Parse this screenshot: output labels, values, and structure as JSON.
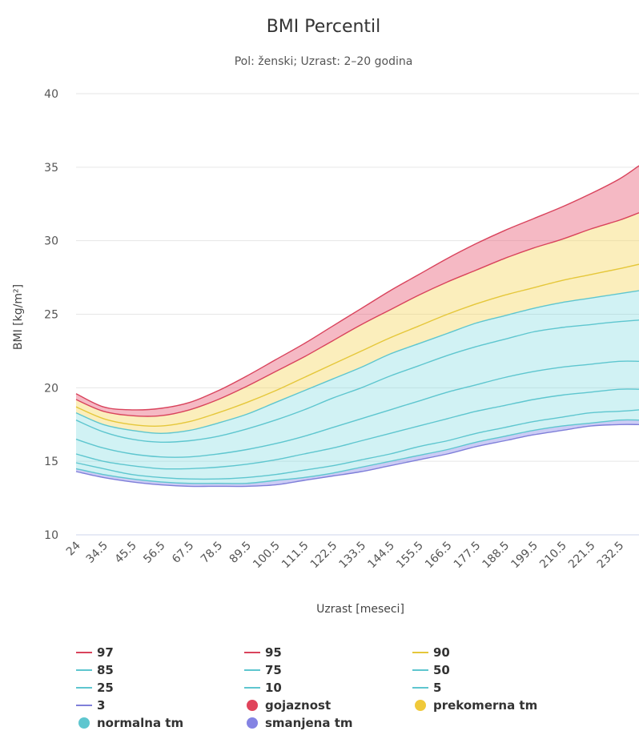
{
  "chart_data": {
    "type": "area",
    "title": "BMI Percentil",
    "subtitle": "Pol: ženski; Uzrast: 2–20 godina",
    "xlabel": "Uzrast [meseci]",
    "ylabel": "BMI [kg/m²]",
    "ylim": [
      10,
      40
    ],
    "yticks": [
      10,
      15,
      20,
      25,
      30,
      35,
      40
    ],
    "xlim": [
      24,
      240
    ],
    "xticks": [
      "24",
      "34.5",
      "45.5",
      "56.5",
      "67.5",
      "78.5",
      "89.5",
      "100.5",
      "111.5",
      "122.5",
      "133.5",
      "144.5",
      "155.5",
      "166.5",
      "177.5",
      "188.5",
      "199.5",
      "210.5",
      "221.5",
      "232.5"
    ],
    "grid": "horizontal",
    "legend_position": "bottom",
    "x": [
      24,
      34.5,
      45.5,
      56.5,
      67.5,
      78.5,
      89.5,
      100.5,
      111.5,
      122.5,
      133.5,
      144.5,
      155.5,
      166.5,
      177.5,
      188.5,
      199.5,
      210.5,
      221.5,
      232.5,
      240
    ],
    "series": [
      {
        "name": "97",
        "color": "#d9435c",
        "values": [
          19.6,
          18.7,
          18.5,
          18.6,
          19.0,
          19.8,
          20.8,
          21.9,
          23.0,
          24.2,
          25.4,
          26.6,
          27.7,
          28.8,
          29.8,
          30.7,
          31.5,
          32.3,
          33.2,
          34.2,
          35.1
        ]
      },
      {
        "name": "95",
        "color": "#d9435c",
        "values": [
          19.2,
          18.4,
          18.1,
          18.1,
          18.5,
          19.2,
          20.1,
          21.1,
          22.1,
          23.2,
          24.3,
          25.3,
          26.3,
          27.2,
          28.0,
          28.8,
          29.5,
          30.1,
          30.8,
          31.4,
          31.9
        ]
      },
      {
        "name": "90",
        "color": "#e5c73a",
        "values": [
          18.7,
          17.9,
          17.5,
          17.4,
          17.7,
          18.3,
          19.0,
          19.8,
          20.7,
          21.6,
          22.5,
          23.4,
          24.2,
          25.0,
          25.7,
          26.3,
          26.8,
          27.3,
          27.7,
          28.1,
          28.4
        ]
      },
      {
        "name": "85",
        "color": "#5ec6cf",
        "values": [
          18.3,
          17.5,
          17.1,
          16.9,
          17.1,
          17.6,
          18.2,
          19.0,
          19.8,
          20.6,
          21.4,
          22.3,
          23.0,
          23.7,
          24.4,
          24.9,
          25.4,
          25.8,
          26.1,
          26.4,
          26.6
        ]
      },
      {
        "name": "75",
        "color": "#5ec6cf",
        "values": [
          17.8,
          17.0,
          16.5,
          16.3,
          16.4,
          16.7,
          17.2,
          17.8,
          18.5,
          19.3,
          20.0,
          20.8,
          21.5,
          22.2,
          22.8,
          23.3,
          23.8,
          24.1,
          24.3,
          24.5,
          24.6
        ]
      },
      {
        "name": "50",
        "color": "#5ec6cf",
        "values": [
          16.5,
          15.9,
          15.5,
          15.3,
          15.3,
          15.5,
          15.8,
          16.2,
          16.7,
          17.3,
          17.9,
          18.5,
          19.1,
          19.7,
          20.2,
          20.7,
          21.1,
          21.4,
          21.6,
          21.8,
          21.8
        ]
      },
      {
        "name": "25",
        "color": "#5ec6cf",
        "values": [
          15.5,
          15.0,
          14.7,
          14.5,
          14.5,
          14.6,
          14.8,
          15.1,
          15.5,
          15.9,
          16.4,
          16.9,
          17.4,
          17.9,
          18.4,
          18.8,
          19.2,
          19.5,
          19.7,
          19.9,
          19.9
        ]
      },
      {
        "name": "10",
        "color": "#5ec6cf",
        "values": [
          14.9,
          14.5,
          14.1,
          13.9,
          13.8,
          13.8,
          13.9,
          14.1,
          14.4,
          14.7,
          15.1,
          15.5,
          16.0,
          16.4,
          16.9,
          17.3,
          17.7,
          18.0,
          18.3,
          18.4,
          18.5
        ]
      },
      {
        "name": "5",
        "color": "#5ec6cf",
        "values": [
          14.5,
          14.1,
          13.8,
          13.6,
          13.5,
          13.5,
          13.5,
          13.7,
          13.9,
          14.2,
          14.6,
          15.0,
          15.4,
          15.8,
          16.3,
          16.7,
          17.1,
          17.4,
          17.6,
          17.8,
          17.8
        ]
      },
      {
        "name": "3",
        "color": "#7f7fd9",
        "values": [
          14.3,
          13.9,
          13.6,
          13.4,
          13.3,
          13.3,
          13.3,
          13.4,
          13.7,
          14.0,
          14.3,
          14.7,
          15.1,
          15.5,
          16.0,
          16.4,
          16.8,
          17.1,
          17.4,
          17.5,
          17.5
        ]
      }
    ],
    "bands": [
      {
        "name": "gojaznost",
        "color": "#e0445b",
        "fill": "rgba(232,100,125,0.45)",
        "upper": "97",
        "lower": "95"
      },
      {
        "name": "prekomerna tm",
        "color": "#f0c93a",
        "fill": "rgba(246,214,96,0.42)",
        "upper": "95",
        "lower": "85"
      },
      {
        "name": "normalna tm",
        "color": "#5ec6cf",
        "fill": "rgba(111,214,222,0.32)",
        "upper": "85",
        "lower": "5"
      },
      {
        "name": "smanjena tm",
        "color": "#8483e3",
        "fill": "rgba(134,134,232,0.42)",
        "upper": "5",
        "lower": "3"
      }
    ]
  },
  "legend": [
    {
      "label": "97",
      "kind": "line",
      "color": "#d9435c"
    },
    {
      "label": "95",
      "kind": "line",
      "color": "#d9435c"
    },
    {
      "label": "90",
      "kind": "line",
      "color": "#e5c73a"
    },
    {
      "label": "85",
      "kind": "line",
      "color": "#5ec6cf"
    },
    {
      "label": "75",
      "kind": "line",
      "color": "#5ec6cf"
    },
    {
      "label": "50",
      "kind": "line",
      "color": "#5ec6cf"
    },
    {
      "label": "25",
      "kind": "line",
      "color": "#5ec6cf"
    },
    {
      "label": "10",
      "kind": "line",
      "color": "#5ec6cf"
    },
    {
      "label": "5",
      "kind": "line",
      "color": "#5ec6cf"
    },
    {
      "label": "3",
      "kind": "line",
      "color": "#7f7fd9"
    },
    {
      "label": "gojaznost",
      "kind": "dot",
      "color": "#e0445b"
    },
    {
      "label": "prekomerna tm",
      "kind": "dot",
      "color": "#f0c93a"
    },
    {
      "label": "normalna tm",
      "kind": "dot",
      "color": "#5ec6cf"
    },
    {
      "label": "smanjena tm",
      "kind": "dot",
      "color": "#8483e3"
    }
  ]
}
